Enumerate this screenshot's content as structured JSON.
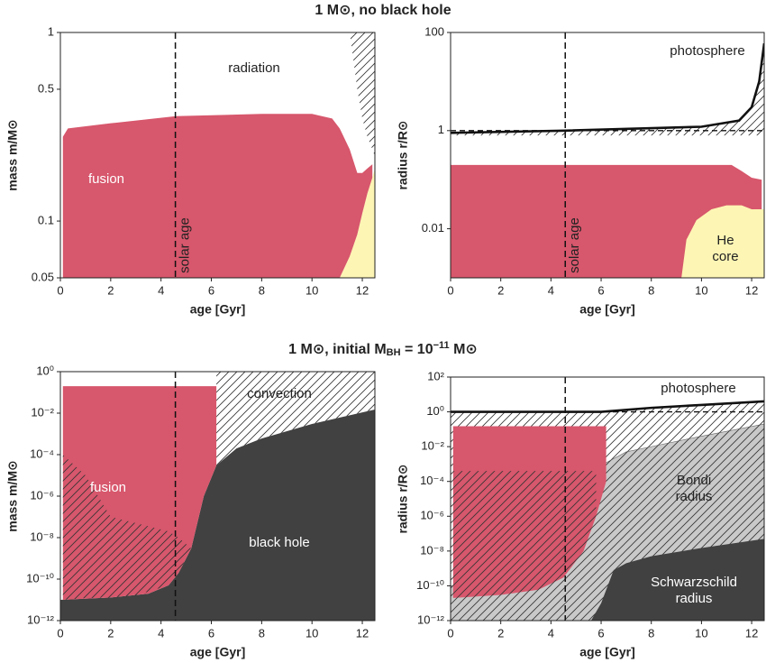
{
  "chart_data": [
    {
      "type": "area",
      "title": [
        {
          "text": "1 M⊙, no black hole"
        }
      ],
      "xlabel": "age [Gyr]",
      "ylabel": "mass m/M⊙",
      "log_y": true,
      "xlim": [
        0,
        12.5
      ],
      "xticks": [
        0,
        2,
        4,
        6,
        8,
        10,
        12
      ],
      "ylim": [
        0.05,
        1
      ],
      "yticks": [
        0.05,
        0.1,
        0.5,
        1
      ],
      "vline": {
        "x": 4.57,
        "label": "solar age"
      },
      "annotations": [
        {
          "text": "radiation"
        }
      ],
      "regions": [
        {
          "color": "#fdf5b4",
          "hatch": false,
          "x": [
            11.1,
            11.5,
            11.8,
            12.0,
            12.2,
            12.4,
            12.5
          ],
          "lower": [
            0.05,
            0.05,
            0.05,
            0.05,
            0.05,
            0.05,
            0.05
          ],
          "upper": [
            0.05,
            0.065,
            0.085,
            0.11,
            0.14,
            0.17,
            0.19
          ]
        },
        {
          "name": "fusion",
          "color": "#d7576c",
          "hatch": false,
          "x": [
            0.1,
            0.3,
            2,
            4.6,
            8,
            10,
            10.8,
            11.1,
            11.5,
            11.8,
            12.0,
            12.2,
            12.4
          ],
          "lower": [
            0.05,
            0.05,
            0.05,
            0.05,
            0.05,
            0.05,
            0.05,
            0.05,
            0.065,
            0.085,
            0.11,
            0.14,
            0.17
          ],
          "upper": [
            0.28,
            0.31,
            0.33,
            0.36,
            0.37,
            0.37,
            0.35,
            0.31,
            0.24,
            0.18,
            0.18,
            0.19,
            0.2
          ]
        },
        {
          "color": "none",
          "hatch": true,
          "x": [
            11.5,
            11.8,
            12.0,
            12.2,
            12.4,
            12.5
          ],
          "lower": [
            1,
            0.5,
            0.35,
            0.28,
            0.24,
            0.22
          ],
          "upper": [
            1,
            1,
            1,
            1,
            1,
            1
          ]
        }
      ],
      "lines": []
    },
    {
      "type": "area",
      "xlabel": "age [Gyr]",
      "ylabel": "radius r/R⊙",
      "log_y": true,
      "xlim": [
        0,
        12.5
      ],
      "xticks": [
        0,
        2,
        4,
        6,
        8,
        10,
        12
      ],
      "ylim": [
        0.001,
        100
      ],
      "yticks": [
        0.01,
        1,
        100
      ],
      "vline": {
        "x": 4.57,
        "label": "solar age"
      },
      "hline": 1,
      "annotations": [],
      "regions": [
        {
          "color": "none",
          "hatch": true,
          "x": [
            0,
            4.6,
            10,
            11.5,
            12,
            12.3,
            12.5
          ],
          "lower": [
            0.8,
            0.8,
            0.8,
            0.8,
            0.8,
            0.8,
            0.8
          ],
          "upper": [
            0.9,
            1.0,
            1.2,
            1.6,
            3,
            10,
            60
          ]
        },
        {
          "color": "#d7576c",
          "hatch": false,
          "x": [
            0,
            11.2,
            11.6,
            12.0,
            12.4
          ],
          "lower": [
            0.001,
            0.001,
            0.001,
            0.001,
            0.001
          ],
          "upper": [
            0.2,
            0.2,
            0.15,
            0.11,
            0.1
          ]
        },
        {
          "name": "He core",
          "color": "#fdf5b4",
          "hatch": false,
          "x": [
            9.2,
            9.4,
            9.8,
            10.4,
            11,
            11.6,
            12,
            12.5
          ],
          "lower": [
            0.001,
            0.001,
            0.001,
            0.001,
            0.001,
            0.001,
            0.001,
            0.001
          ],
          "upper": [
            0.001,
            0.006,
            0.015,
            0.025,
            0.03,
            0.03,
            0.025,
            0.025
          ]
        }
      ],
      "lines": [
        {
          "name": "photosphere",
          "color": "#111111",
          "x": [
            0,
            4.6,
            10,
            11.5,
            12,
            12.3,
            12.5
          ],
          "values": [
            0.9,
            1.0,
            1.2,
            1.6,
            3,
            10,
            60
          ]
        }
      ]
    },
    {
      "type": "area",
      "title": [
        {
          "text": "1 M⊙, initial M"
        },
        {
          "text": "BH",
          "sub": true
        },
        {
          "text": " = 10"
        },
        {
          "text": "−11",
          "sup": true
        },
        {
          "text": " M⊙"
        }
      ],
      "xlabel": "age [Gyr]",
      "ylabel": "mass m/M⊙",
      "log_y": true,
      "xlim": [
        0,
        12.5
      ],
      "xticks": [
        0,
        2,
        4,
        6,
        8,
        10,
        12
      ],
      "ylim": [
        1e-12,
        1
      ],
      "yticks": [
        {
          "value": 1,
          "label": "10⁰"
        },
        {
          "value": 0.01,
          "label": "10⁻²"
        },
        {
          "value": 0.0001,
          "label": "10⁻⁴"
        },
        {
          "value": 1e-06,
          "label": "10⁻⁶"
        },
        {
          "value": 1e-08,
          "label": "10⁻⁸"
        },
        {
          "value": 1e-10,
          "label": "10⁻¹⁰"
        },
        {
          "value": 1e-12,
          "label": "10⁻¹²"
        }
      ],
      "vline": {
        "x": 4.57
      },
      "annotations": [],
      "regions": [
        {
          "name": "black hole",
          "color": "#414141",
          "hatch": false,
          "x": [
            0,
            2,
            3.5,
            4.3,
            4.7,
            5.2,
            5.7,
            6.2,
            7,
            8,
            10,
            12.5
          ],
          "lower": [
            1e-12,
            1e-12,
            1e-12,
            1e-12,
            1e-12,
            1e-12,
            1e-12,
            1e-12,
            1e-12,
            1e-12,
            1e-12,
            1e-12
          ],
          "upper": [
            1e-11,
            1.3e-11,
            2e-11,
            5e-11,
            2e-10,
            3e-09,
            1e-06,
            3e-05,
            0.0002,
            0.0006,
            0.003,
            0.015
          ]
        },
        {
          "name": "fusion",
          "color": "#d7576c",
          "hatch": false,
          "x": [
            0.1,
            2,
            3.5,
            4.3,
            4.7,
            5.2,
            5.7,
            6.2
          ],
          "lower": [
            1e-11,
            1.3e-11,
            2e-11,
            5e-11,
            2e-10,
            3e-09,
            1e-06,
            3e-05
          ],
          "upper": [
            0.2,
            0.2,
            0.2,
            0.2,
            0.2,
            0.2,
            0.2,
            0.2
          ]
        },
        {
          "color": "none",
          "hatch": true,
          "x": [
            0.1,
            1,
            2,
            3,
            4.3,
            4.7,
            5.2
          ],
          "lower": [
            1e-11,
            1.2e-11,
            1.3e-11,
            1.6e-11,
            5e-11,
            2e-10,
            3e-09
          ],
          "upper": [
            0.0001,
            1e-05,
            1e-07,
            5e-08,
            2e-08,
            1e-08,
            3e-09
          ]
        },
        {
          "name": "convection",
          "color": "none",
          "hatch": true,
          "x": [
            6.2,
            7,
            8,
            10,
            12.5
          ],
          "lower": [
            3e-05,
            0.0002,
            0.0006,
            0.003,
            0.015
          ],
          "upper": [
            1,
            1,
            1,
            1,
            1
          ]
        }
      ],
      "lines": []
    },
    {
      "type": "area",
      "xlabel": "age [Gyr]",
      "ylabel": "radius r/R⊙",
      "log_y": true,
      "xlim": [
        0,
        12.5
      ],
      "xticks": [
        0,
        2,
        4,
        6,
        8,
        10,
        12
      ],
      "ylim": [
        1e-12,
        100
      ],
      "yticks": [
        {
          "value": 100,
          "label": "10²"
        },
        {
          "value": 1,
          "label": "10⁰"
        },
        {
          "value": 0.01,
          "label": "10⁻²"
        },
        {
          "value": 0.0001,
          "label": "10⁻⁴"
        },
        {
          "value": 1e-06,
          "label": "10⁻⁶"
        },
        {
          "value": 1e-08,
          "label": "10⁻⁸"
        },
        {
          "value": 1e-10,
          "label": "10⁻¹⁰"
        },
        {
          "value": 1e-12,
          "label": "10⁻¹²"
        }
      ],
      "vline": {
        "x": 4.57
      },
      "hline": 1,
      "annotations": [],
      "regions": [
        {
          "color": "none",
          "hatch": true,
          "x": [
            0,
            6.2,
            8,
            10,
            12.5
          ],
          "lower": [
            1e-12,
            1e-12,
            1e-12,
            1e-12,
            1e-12
          ],
          "upper": [
            0.9,
            0.9,
            1.6,
            2.5,
            4
          ]
        },
        {
          "name": "Bondi radius",
          "color": "#c9c9c9",
          "hatch": true,
          "x": [
            0,
            4.5,
            5.5,
            6.1,
            7,
            8,
            10,
            12.5
          ],
          "lower": [
            1e-12,
            1e-12,
            1e-12,
            1e-12,
            1e-12,
            1e-12,
            1e-12,
            1e-12
          ],
          "upper": [
            1e-10,
            1e-09,
            1e-06,
            0.001,
            0.005,
            0.01,
            0.04,
            0.2
          ]
        },
        {
          "color": "#d7576c",
          "hatch": false,
          "x": [
            0.1,
            2,
            3.5,
            4.5,
            5.3,
            5.8,
            6.2
          ],
          "lower": [
            2e-11,
            3e-11,
            6e-11,
            3e-10,
            1e-08,
            1e-06,
            0.0001
          ],
          "upper": [
            0.15,
            0.15,
            0.15,
            0.15,
            0.15,
            0.15,
            0.15
          ]
        },
        {
          "color": "none",
          "hatch": true,
          "x": [
            0.1,
            2,
            3.5,
            4.5,
            5.3,
            5.8
          ],
          "lower": [
            2e-11,
            3e-11,
            6e-11,
            3e-10,
            1e-08,
            1e-06
          ],
          "upper": [
            0.0004,
            0.0004,
            0.0004,
            0.0004,
            0.0004,
            0.0004
          ]
        },
        {
          "name": "Schwarzschild radius",
          "color": "#414141",
          "hatch": false,
          "x": [
            5.6,
            6,
            6.5,
            7,
            8,
            10,
            12.5
          ],
          "lower": [
            1e-12,
            1e-12,
            1e-12,
            1e-12,
            1e-12,
            1e-12,
            1e-12
          ],
          "upper": [
            1e-12,
            1e-11,
            8e-10,
            2e-09,
            5e-09,
            1.5e-08,
            5e-08
          ]
        }
      ],
      "lines": [
        {
          "name": "photosphere",
          "color": "#111111",
          "x": [
            0,
            6,
            8,
            10,
            12.5
          ],
          "values": [
            1,
            1,
            1.7,
            2.5,
            4
          ]
        }
      ]
    }
  ]
}
